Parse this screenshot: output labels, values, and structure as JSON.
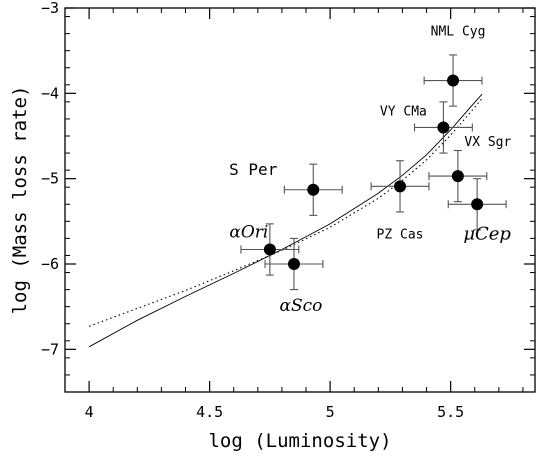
{
  "chart_data": {
    "type": "scatter",
    "title": "",
    "xlabel": "log (Luminosity)",
    "ylabel": "log (Mass loss rate)",
    "xlim": [
      3.9,
      5.85
    ],
    "ylim": [
      -7.5,
      -3.0
    ],
    "x_ticks": [
      4,
      4.5,
      5,
      5.5
    ],
    "x_tick_labels": [
      "4",
      "4.5",
      "5",
      "5.5"
    ],
    "y_ticks": [
      -7,
      -6,
      -5,
      -4,
      -3
    ],
    "y_tick_labels": [
      "−7",
      "−6",
      "−5",
      "−4",
      "−3"
    ],
    "grid": false,
    "points": [
      {
        "label": "NML Cyg",
        "x": 5.51,
        "y": -3.85,
        "xerr": 0.12,
        "yerr": 0.3
      },
      {
        "label": "VY CMa",
        "x": 5.47,
        "y": -4.4,
        "xerr": 0.12,
        "yerr": 0.3
      },
      {
        "label": "VX Sgr",
        "x": 5.53,
        "y": -4.97,
        "xerr": 0.12,
        "yerr": 0.3
      },
      {
        "label": "S Per",
        "x": 4.93,
        "y": -5.13,
        "xerr": 0.12,
        "yerr": 0.3
      },
      {
        "label": "PZ Cas",
        "x": 5.29,
        "y": -5.09,
        "xerr": 0.12,
        "yerr": 0.3
      },
      {
        "label": "μCep",
        "x": 5.61,
        "y": -5.3,
        "xerr": 0.12,
        "yerr": 0.3
      },
      {
        "label": "αOri",
        "x": 4.75,
        "y": -5.83,
        "xerr": 0.12,
        "yerr": 0.3
      },
      {
        "label": "αSco",
        "x": 4.85,
        "y": -6.0,
        "xerr": 0.12,
        "yerr": 0.3
      }
    ],
    "series": [
      {
        "style": "solid",
        "x": [
          4.0,
          4.2,
          4.4,
          4.6,
          4.8,
          5.0,
          5.2,
          5.3,
          5.4,
          5.5,
          5.58,
          5.63
        ],
        "y": [
          -6.97,
          -6.66,
          -6.38,
          -6.11,
          -5.83,
          -5.53,
          -5.17,
          -4.96,
          -4.72,
          -4.43,
          -4.17,
          -4.01
        ]
      },
      {
        "style": "dotted",
        "x": [
          4.0,
          4.2,
          4.4,
          4.6,
          4.8,
          5.0,
          5.2,
          5.3,
          5.4,
          5.5,
          5.58,
          5.63
        ],
        "y": [
          -6.73,
          -6.52,
          -6.31,
          -6.08,
          -5.84,
          -5.57,
          -5.23,
          -5.02,
          -4.78,
          -4.49,
          -4.23,
          -4.06
        ]
      }
    ],
    "axes_color": "#000000",
    "marker_color": "#000000"
  }
}
